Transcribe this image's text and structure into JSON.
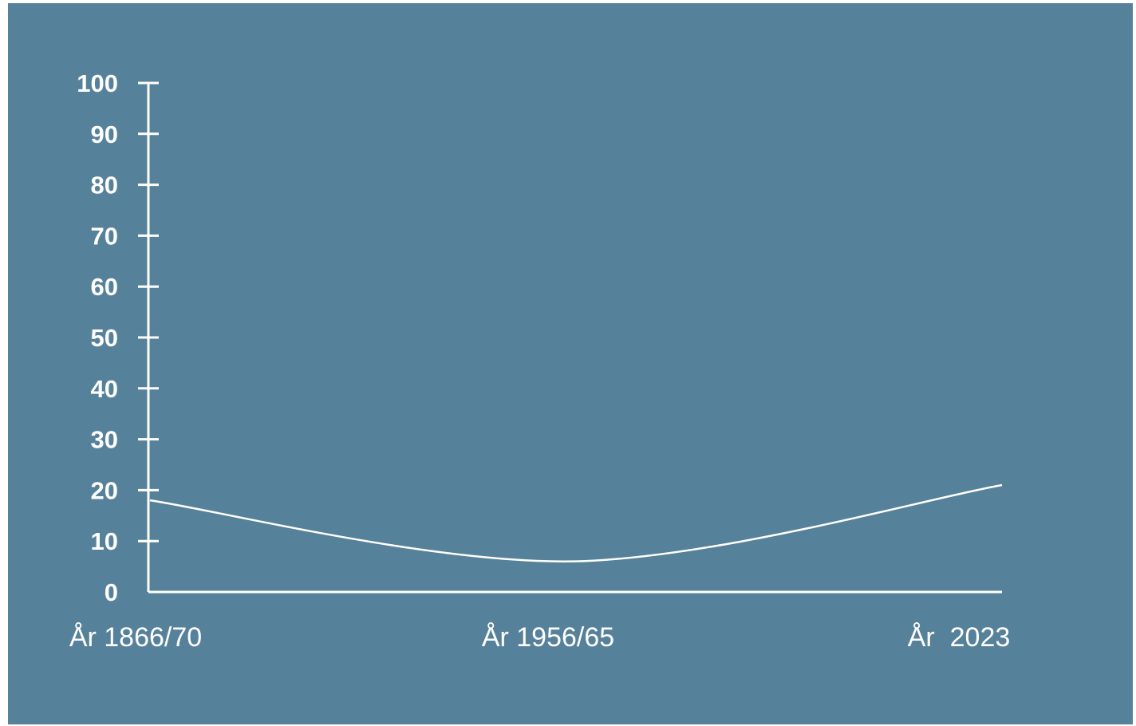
{
  "colors": {
    "background": "#56819a",
    "foreground": "#ffffff"
  },
  "chart_data": {
    "type": "line",
    "title": "",
    "xlabel": "",
    "ylabel": "",
    "categories": [
      "År 1866/70",
      "År 1956/65",
      "År  2023"
    ],
    "series": [
      {
        "values": [
          18,
          6,
          21
        ]
      }
    ],
    "ylim": [
      0,
      100
    ],
    "yticks": [
      "0",
      "10",
      "20",
      "30",
      "40",
      "50",
      "60",
      "70",
      "80",
      "90",
      "100"
    ],
    "grid": false,
    "legend": "none"
  }
}
